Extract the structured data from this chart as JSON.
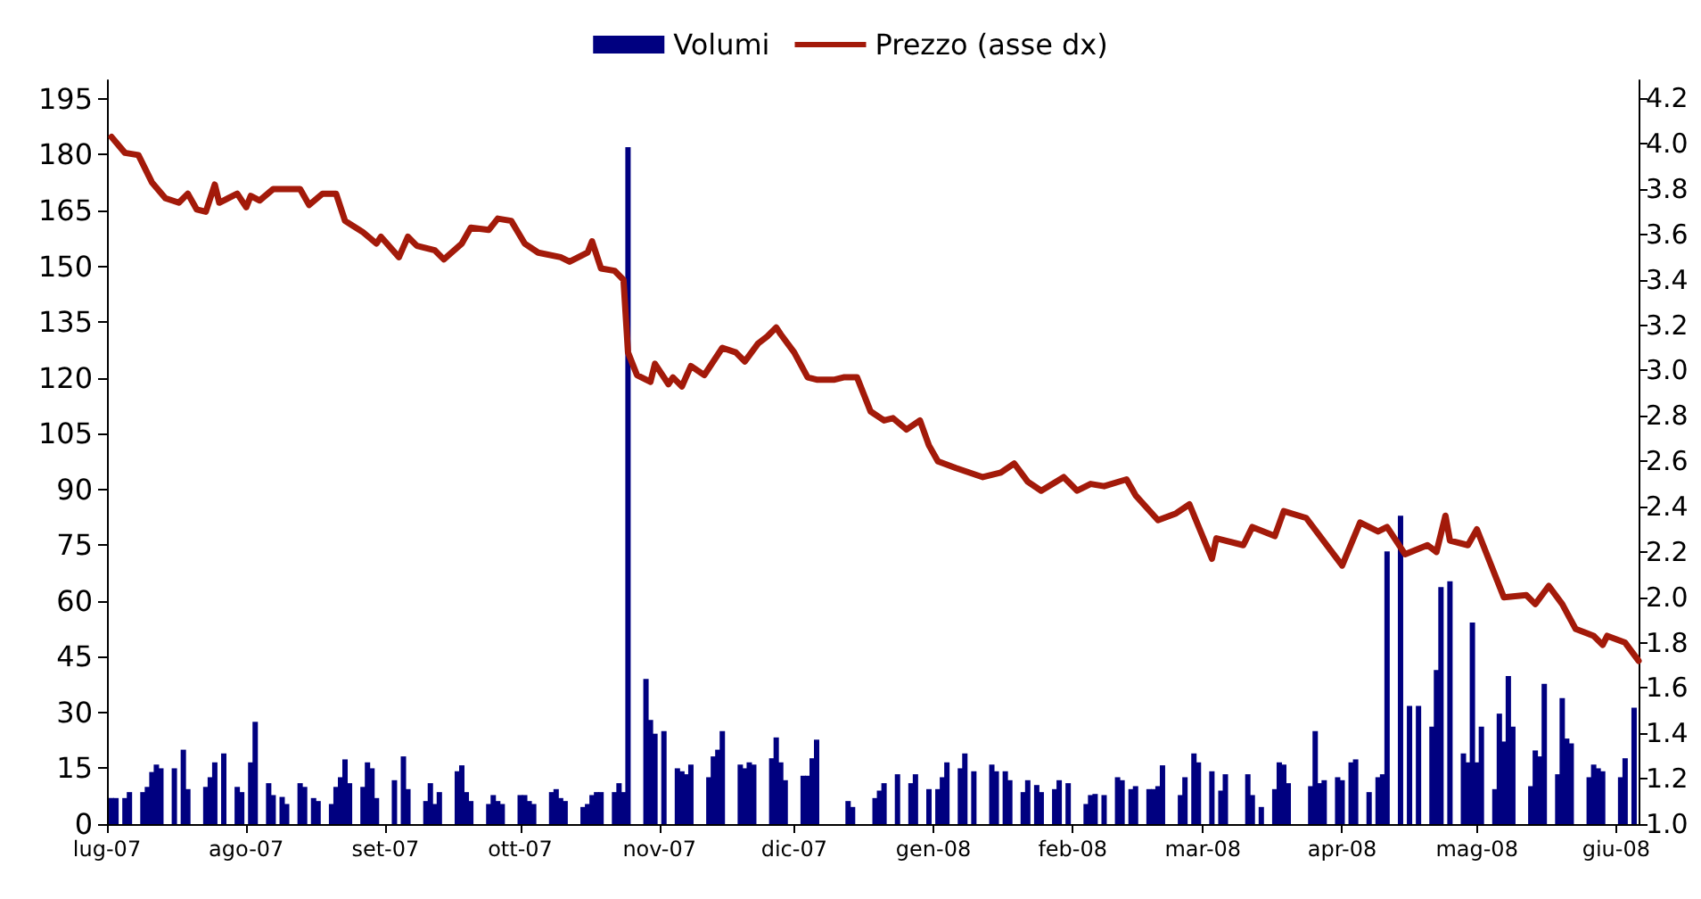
{
  "chart_data": {
    "type": "bar",
    "legend": "top",
    "marker": "none",
    "line_style": "solid",
    "grid": false,
    "xlim": [
      "2007-07-01",
      "2008-06-06"
    ],
    "xticks": [
      {
        "value": "2007-07-01",
        "label": "lug-07"
      },
      {
        "value": "2007-08-01",
        "label": "ago-07"
      },
      {
        "value": "2007-09-01",
        "label": "set-07"
      },
      {
        "value": "2007-10-01",
        "label": "ott-07"
      },
      {
        "value": "2007-11-01",
        "label": "nov-07"
      },
      {
        "value": "2007-12-01",
        "label": "dic-07"
      },
      {
        "value": "2008-01-01",
        "label": "gen-08"
      },
      {
        "value": "2008-02-01",
        "label": "feb-08"
      },
      {
        "value": "2008-03-01",
        "label": "mar-08"
      },
      {
        "value": "2008-04-01",
        "label": "apr-08"
      },
      {
        "value": "2008-05-01",
        "label": "mag-08"
      },
      {
        "value": "2008-06-01",
        "label": "giu-08"
      }
    ],
    "ylim": [
      0,
      200
    ],
    "yticks": [
      0,
      15,
      30,
      45,
      60,
      75,
      90,
      105,
      120,
      135,
      150,
      165,
      180,
      195
    ],
    "y2lim": [
      1.0,
      4.28
    ],
    "y2ticks": [
      {
        "value": 1.0,
        "label": "1.0"
      },
      {
        "value": 1.2,
        "label": "1.2"
      },
      {
        "value": 1.4,
        "label": "1.4"
      },
      {
        "value": 1.6,
        "label": "1.6"
      },
      {
        "value": 1.8,
        "label": "1.8"
      },
      {
        "value": 2.0,
        "label": "2.0"
      },
      {
        "value": 2.2,
        "label": "2.2"
      },
      {
        "value": 2.4,
        "label": "2.4"
      },
      {
        "value": 2.6,
        "label": "2.6"
      },
      {
        "value": 2.8,
        "label": "2.8"
      },
      {
        "value": 3.0,
        "label": "3.0"
      },
      {
        "value": 3.2,
        "label": "3.2"
      },
      {
        "value": 3.4,
        "label": "3.4"
      },
      {
        "value": 3.6,
        "label": "3.6"
      },
      {
        "value": 3.8,
        "label": "3.8"
      },
      {
        "value": 4.0,
        "label": "4.0"
      },
      {
        "value": 4.2,
        "label": "4.2"
      }
    ],
    "series": [
      {
        "name": "Volumi",
        "color": "#000080",
        "x": [
          "2007-07-02",
          "2007-07-03",
          "2007-07-05",
          "2007-07-06",
          "2007-07-09",
          "2007-07-10",
          "2007-07-11",
          "2007-07-12",
          "2007-07-13",
          "2007-07-16",
          "2007-07-18",
          "2007-07-19",
          "2007-07-23",
          "2007-07-24",
          "2007-07-25",
          "2007-07-27",
          "2007-07-30",
          "2007-07-31",
          "2007-08-02",
          "2007-08-03",
          "2007-08-06",
          "2007-08-07",
          "2007-08-09",
          "2007-08-10",
          "2007-08-13",
          "2007-08-14",
          "2007-08-16",
          "2007-08-17",
          "2007-08-20",
          "2007-08-21",
          "2007-08-22",
          "2007-08-23",
          "2007-08-24",
          "2007-08-27",
          "2007-08-28",
          "2007-08-29",
          "2007-08-30",
          "2007-09-03",
          "2007-09-05",
          "2007-09-06",
          "2007-09-10",
          "2007-09-11",
          "2007-09-12",
          "2007-09-13",
          "2007-09-17",
          "2007-09-18",
          "2007-09-19",
          "2007-09-20",
          "2007-09-24",
          "2007-09-25",
          "2007-09-26",
          "2007-09-27",
          "2007-10-01",
          "2007-10-02",
          "2007-10-03",
          "2007-10-04",
          "2007-10-08",
          "2007-10-09",
          "2007-10-10",
          "2007-10-11",
          "2007-10-15",
          "2007-10-16",
          "2007-10-17",
          "2007-10-18",
          "2007-10-19",
          "2007-10-22",
          "2007-10-23",
          "2007-10-24",
          "2007-10-25",
          "2007-10-29",
          "2007-10-30",
          "2007-10-31",
          "2007-11-02",
          "2007-11-05",
          "2007-11-06",
          "2007-11-07",
          "2007-11-08",
          "2007-11-12",
          "2007-11-13",
          "2007-11-14",
          "2007-11-15",
          "2007-11-19",
          "2007-11-20",
          "2007-11-21",
          "2007-11-22",
          "2007-11-26",
          "2007-11-27",
          "2007-11-28",
          "2007-11-29",
          "2007-12-03",
          "2007-12-04",
          "2007-12-05",
          "2007-12-06",
          "2007-12-13",
          "2007-12-14",
          "2007-12-19",
          "2007-12-20",
          "2007-12-21",
          "2007-12-24",
          "2007-12-27",
          "2007-12-28",
          "2007-12-31",
          "2008-01-02",
          "2008-01-03",
          "2008-01-04",
          "2008-01-07",
          "2008-01-08",
          "2008-01-10",
          "2008-01-14",
          "2008-01-15",
          "2008-01-17",
          "2008-01-18",
          "2008-01-21",
          "2008-01-22",
          "2008-01-24",
          "2008-01-25",
          "2008-01-28",
          "2008-01-29",
          "2008-01-31",
          "2008-02-04",
          "2008-02-05",
          "2008-02-06",
          "2008-02-08",
          "2008-02-11",
          "2008-02-12",
          "2008-02-14",
          "2008-02-15",
          "2008-02-18",
          "2008-02-19",
          "2008-02-20",
          "2008-02-21",
          "2008-02-25",
          "2008-02-26",
          "2008-02-28",
          "2008-02-29",
          "2008-03-03",
          "2008-03-05",
          "2008-03-06",
          "2008-03-11",
          "2008-03-12",
          "2008-03-14",
          "2008-03-17",
          "2008-03-18",
          "2008-03-19",
          "2008-03-20",
          "2008-03-25",
          "2008-03-26",
          "2008-03-27",
          "2008-03-28",
          "2008-03-31",
          "2008-04-01",
          "2008-04-03",
          "2008-04-04",
          "2008-04-07",
          "2008-04-09",
          "2008-04-10",
          "2008-04-11",
          "2008-04-14",
          "2008-04-16",
          "2008-04-18",
          "2008-04-21",
          "2008-04-22",
          "2008-04-23",
          "2008-04-25",
          "2008-04-28",
          "2008-04-29",
          "2008-04-30",
          "2008-05-01",
          "2008-05-02",
          "2008-05-05",
          "2008-05-06",
          "2008-05-07",
          "2008-05-08",
          "2008-05-09",
          "2008-05-13",
          "2008-05-14",
          "2008-05-15",
          "2008-05-16",
          "2008-05-19",
          "2008-05-20",
          "2008-05-21",
          "2008-05-22",
          "2008-05-26",
          "2008-05-27",
          "2008-05-28",
          "2008-05-29",
          "2008-06-02",
          "2008-06-03",
          "2008-06-05"
        ],
        "values": [
          7,
          7,
          7,
          8.6,
          8.6,
          10,
          14,
          16,
          15,
          15,
          20,
          9.4,
          10,
          12.6,
          16.6,
          19,
          10,
          8.6,
          16.6,
          27.5,
          11,
          7.8,
          7.3,
          5.4,
          11,
          10,
          7,
          6.2,
          5.4,
          10,
          12.6,
          17.4,
          11,
          10,
          16.6,
          15,
          7,
          11.8,
          18.2,
          9.4,
          6.2,
          11,
          5.4,
          8.6,
          14.2,
          15.8,
          8.6,
          6.2,
          5.4,
          7.8,
          6.2,
          5.4,
          7.8,
          7.8,
          6.2,
          5.4,
          8.6,
          9.4,
          7,
          6.2,
          4.6,
          5.4,
          7.8,
          8.6,
          8.6,
          8.6,
          11,
          8.6,
          182,
          39,
          28,
          24.3,
          25,
          15,
          14.2,
          13.4,
          16,
          12.6,
          18.2,
          20,
          25,
          16,
          15,
          16.6,
          16,
          17.7,
          23.3,
          16.6,
          11.8,
          13,
          13,
          17.7,
          22.7,
          6.2,
          4.6,
          7,
          9,
          11,
          13.4,
          11,
          13.4,
          9.4,
          9.4,
          12.6,
          16.6,
          15,
          19,
          14.2,
          16,
          14.2,
          14.2,
          11.8,
          8.6,
          11.8,
          10.5,
          8.6,
          9.4,
          11.8,
          11,
          5.4,
          7.8,
          8.1,
          7.8,
          12.6,
          11.8,
          9.4,
          10.2,
          9.4,
          9.4,
          10.2,
          15.8,
          7.8,
          12.6,
          19,
          16.6,
          14.2,
          9,
          13.4,
          13.4,
          7.8,
          4.6,
          9.4,
          16.6,
          16,
          11,
          10.2,
          25,
          11,
          11.8,
          12.6,
          11.8,
          16.6,
          17.4,
          8.6,
          12.6,
          13.4,
          73.3,
          82.9,
          31.8,
          31.8,
          26.2,
          41.4,
          63.7,
          65.3,
          19,
          16.6,
          54.2,
          16.6,
          26.2,
          9.4,
          29.7,
          22.2,
          39.8,
          26.2,
          10.2,
          19.8,
          18.2,
          37.7,
          13.4,
          33.9,
          23,
          21.7,
          12.6,
          16,
          15,
          14.2,
          12.6,
          17.7,
          31.3
        ]
      },
      {
        "name": "Prezzo (asse dx)",
        "type": "line",
        "axis": "y2",
        "color": "#a31a0a",
        "x": [
          "2007-07-02",
          "2007-07-05",
          "2007-07-08",
          "2007-07-11",
          "2007-07-14",
          "2007-07-17",
          "2007-07-19",
          "2007-07-21",
          "2007-07-23",
          "2007-07-25",
          "2007-07-26",
          "2007-07-30",
          "2007-08-01",
          "2007-08-02",
          "2007-08-04",
          "2007-08-07",
          "2007-08-13",
          "2007-08-15",
          "2007-08-18",
          "2007-08-21",
          "2007-08-23",
          "2007-08-27",
          "2007-08-30",
          "2007-08-31",
          "2007-09-04",
          "2007-09-06",
          "2007-09-08",
          "2007-09-12",
          "2007-09-14",
          "2007-09-18",
          "2007-09-20",
          "2007-09-24",
          "2007-09-26",
          "2007-09-29",
          "2007-10-02",
          "2007-10-05",
          "2007-10-10",
          "2007-10-12",
          "2007-10-16",
          "2007-10-17",
          "2007-10-19",
          "2007-10-22",
          "2007-10-24",
          "2007-10-25",
          "2007-10-27",
          "2007-10-30",
          "2007-10-31",
          "2007-11-03",
          "2007-11-04",
          "2007-11-06",
          "2007-11-08",
          "2007-11-11",
          "2007-11-15",
          "2007-11-18",
          "2007-11-20",
          "2007-11-23",
          "2007-11-25",
          "2007-11-27",
          "2007-11-28",
          "2007-12-01",
          "2007-12-04",
          "2007-12-06",
          "2007-12-10",
          "2007-12-12",
          "2007-12-15",
          "2007-12-18",
          "2007-12-21",
          "2007-12-23",
          "2007-12-26",
          "2007-12-29",
          "2007-12-31",
          "2008-01-02",
          "2008-01-06",
          "2008-01-12",
          "2008-01-16",
          "2008-01-19",
          "2008-01-22",
          "2008-01-25",
          "2008-01-30",
          "2008-02-02",
          "2008-02-05",
          "2008-02-08",
          "2008-02-13",
          "2008-02-15",
          "2008-02-20",
          "2008-02-24",
          "2008-02-27",
          "2008-03-03",
          "2008-03-04",
          "2008-03-10",
          "2008-03-12",
          "2008-03-17",
          "2008-03-19",
          "2008-03-24",
          "2008-04-01",
          "2008-04-05",
          "2008-04-09",
          "2008-04-11",
          "2008-04-15",
          "2008-04-20",
          "2008-04-22",
          "2008-04-24",
          "2008-04-25",
          "2008-04-29",
          "2008-05-01",
          "2008-05-07",
          "2008-05-12",
          "2008-05-14",
          "2008-05-17",
          "2008-05-20",
          "2008-05-23",
          "2008-05-27",
          "2008-05-29",
          "2008-05-30",
          "2008-06-03",
          "2008-06-06"
        ],
        "values": [
          4.03,
          3.96,
          3.95,
          3.83,
          3.76,
          3.74,
          3.78,
          3.71,
          3.7,
          3.82,
          3.74,
          3.78,
          3.72,
          3.77,
          3.75,
          3.8,
          3.8,
          3.73,
          3.78,
          3.78,
          3.66,
          3.61,
          3.56,
          3.59,
          3.5,
          3.59,
          3.55,
          3.53,
          3.49,
          3.56,
          3.63,
          3.62,
          3.67,
          3.66,
          3.56,
          3.52,
          3.5,
          3.48,
          3.52,
          3.57,
          3.45,
          3.44,
          3.4,
          3.08,
          2.98,
          2.95,
          3.03,
          2.94,
          2.97,
          2.93,
          3.02,
          2.98,
          3.1,
          3.08,
          3.04,
          3.12,
          3.15,
          3.19,
          3.16,
          3.08,
          2.97,
          2.96,
          2.96,
          2.97,
          2.97,
          2.82,
          2.78,
          2.79,
          2.74,
          2.78,
          2.67,
          2.6,
          2.57,
          2.53,
          2.55,
          2.59,
          2.51,
          2.47,
          2.53,
          2.47,
          2.5,
          2.49,
          2.52,
          2.45,
          2.34,
          2.37,
          2.41,
          2.17,
          2.26,
          2.23,
          2.31,
          2.27,
          2.38,
          2.35,
          2.14,
          2.33,
          2.29,
          2.31,
          2.19,
          2.23,
          2.2,
          2.36,
          2.25,
          2.23,
          2.3,
          2.0,
          2.01,
          1.97,
          2.05,
          1.97,
          1.86,
          1.83,
          1.79,
          1.83,
          1.8,
          1.72
        ]
      }
    ]
  }
}
